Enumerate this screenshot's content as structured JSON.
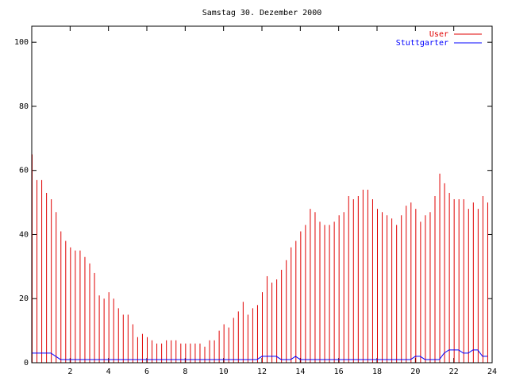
{
  "chart_data": {
    "type": "line",
    "title": "Samstag 30. Dezember 2000",
    "x": [
      0,
      0.25,
      0.5,
      0.75,
      1,
      1.25,
      1.5,
      1.75,
      2,
      2.25,
      2.5,
      2.75,
      3,
      3.25,
      3.5,
      3.75,
      4,
      4.25,
      4.5,
      4.75,
      5,
      5.25,
      5.5,
      5.75,
      6,
      6.25,
      6.5,
      6.75,
      7,
      7.25,
      7.5,
      7.75,
      8,
      8.25,
      8.5,
      8.75,
      9,
      9.25,
      9.5,
      9.75,
      10,
      10.25,
      10.5,
      10.75,
      11,
      11.25,
      11.5,
      11.75,
      12,
      12.25,
      12.5,
      12.75,
      13,
      13.25,
      13.5,
      13.75,
      14,
      14.25,
      14.5,
      14.75,
      15,
      15.25,
      15.5,
      15.75,
      16,
      16.25,
      16.5,
      16.75,
      17,
      17.25,
      17.5,
      17.75,
      18,
      18.25,
      18.5,
      18.75,
      19,
      19.25,
      19.5,
      19.75,
      20,
      20.25,
      20.5,
      20.75,
      21,
      21.25,
      21.5,
      21.75,
      22,
      22.25,
      22.5,
      22.75,
      23,
      23.25,
      23.5,
      23.75
    ],
    "series": [
      {
        "name": "User",
        "color": "#e00000",
        "style": "impulses",
        "values": [
          65,
          57,
          57,
          53,
          51,
          47,
          41,
          38,
          36,
          35,
          35,
          33,
          31,
          28,
          21,
          20,
          22,
          20,
          17,
          15,
          15,
          12,
          8,
          9,
          8,
          7,
          6,
          6,
          7,
          7,
          7,
          6,
          6,
          6,
          6,
          6,
          5,
          7,
          7,
          10,
          12,
          11,
          14,
          16,
          19,
          15,
          17,
          18,
          22,
          27,
          25,
          26,
          29,
          32,
          36,
          38,
          41,
          43,
          48,
          47,
          44,
          43,
          43,
          44,
          46,
          47,
          52,
          51,
          52,
          54,
          54,
          51,
          48,
          47,
          46,
          45,
          43,
          46,
          49,
          50,
          48,
          44,
          46,
          47,
          52,
          59,
          56,
          53,
          51,
          51,
          51,
          48,
          50,
          48,
          52,
          50
        ]
      },
      {
        "name": "Stuttgarter",
        "color": "#0000ff",
        "style": "lines",
        "values": [
          3,
          3,
          3,
          3,
          3,
          2,
          1,
          1,
          1,
          1,
          1,
          1,
          1,
          1,
          1,
          1,
          1,
          1,
          1,
          1,
          1,
          1,
          1,
          1,
          1,
          1,
          1,
          1,
          1,
          1,
          1,
          1,
          1,
          1,
          1,
          1,
          1,
          1,
          1,
          1,
          1,
          1,
          1,
          1,
          1,
          1,
          1,
          1,
          2,
          2,
          2,
          2,
          1,
          1,
          1,
          2,
          1,
          1,
          1,
          1,
          1,
          1,
          1,
          1,
          1,
          1,
          1,
          1,
          1,
          1,
          1,
          1,
          1,
          1,
          1,
          1,
          1,
          1,
          1,
          1,
          2,
          2,
          1,
          1,
          1,
          1,
          3,
          4,
          4,
          4,
          3,
          3,
          4,
          4,
          2,
          2
        ]
      }
    ],
    "xlim": [
      0,
      24
    ],
    "xticks": [
      2,
      4,
      6,
      8,
      10,
      12,
      14,
      16,
      18,
      20,
      22,
      24
    ],
    "ylim": [
      0,
      105
    ],
    "yticks": [
      0,
      20,
      40,
      60,
      80,
      100
    ]
  }
}
